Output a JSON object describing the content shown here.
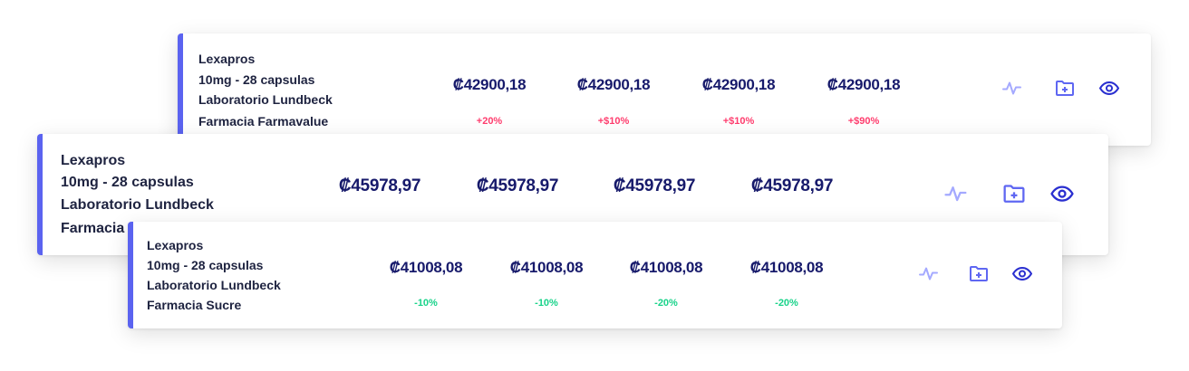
{
  "colors": {
    "accent": "#5b63f0",
    "price": "#171a6b",
    "up": "#ff3d6e",
    "down": "#19d38a",
    "pulse": "#a4a9ff",
    "folder": "#5f67f2",
    "eye": "#2a2fd0"
  },
  "cards": [
    {
      "id": "middle",
      "lines": [
        "Lexapros",
        "10mg - 28 capsulas",
        "Laboratorio Lundbeck",
        "Farmacia"
      ],
      "prices": [
        "₡45978,97",
        "₡45978,97",
        "₡45978,97",
        "₡45978,97"
      ],
      "changes": [],
      "trend": "",
      "icons": [
        "pulse-icon",
        "folder-plus-icon",
        "eye-icon"
      ]
    },
    {
      "id": "top",
      "lines": [
        "Lexapros",
        "10mg - 28 capsulas",
        "Laboratorio Lundbeck",
        "Farmacia Farmavalue"
      ],
      "prices": [
        "₡42900,18",
        "₡42900,18",
        "₡42900,18",
        "₡42900,18"
      ],
      "changes": [
        "+20%",
        "+$10%",
        "+$10%",
        "+$90%"
      ],
      "trend": "up",
      "icons": [
        "pulse-icon",
        "folder-plus-icon",
        "eye-icon"
      ]
    },
    {
      "id": "bottom",
      "lines": [
        "Lexapros",
        "10mg - 28 capsulas",
        "Laboratorio Lundbeck",
        "Farmacia Sucre"
      ],
      "prices": [
        "₡41008,08",
        "₡41008,08",
        "₡41008,08",
        "₡41008,08"
      ],
      "changes": [
        "-10%",
        "-10%",
        "-20%",
        "-20%"
      ],
      "trend": "down",
      "icons": [
        "pulse-icon",
        "folder-plus-icon",
        "eye-icon"
      ]
    }
  ]
}
